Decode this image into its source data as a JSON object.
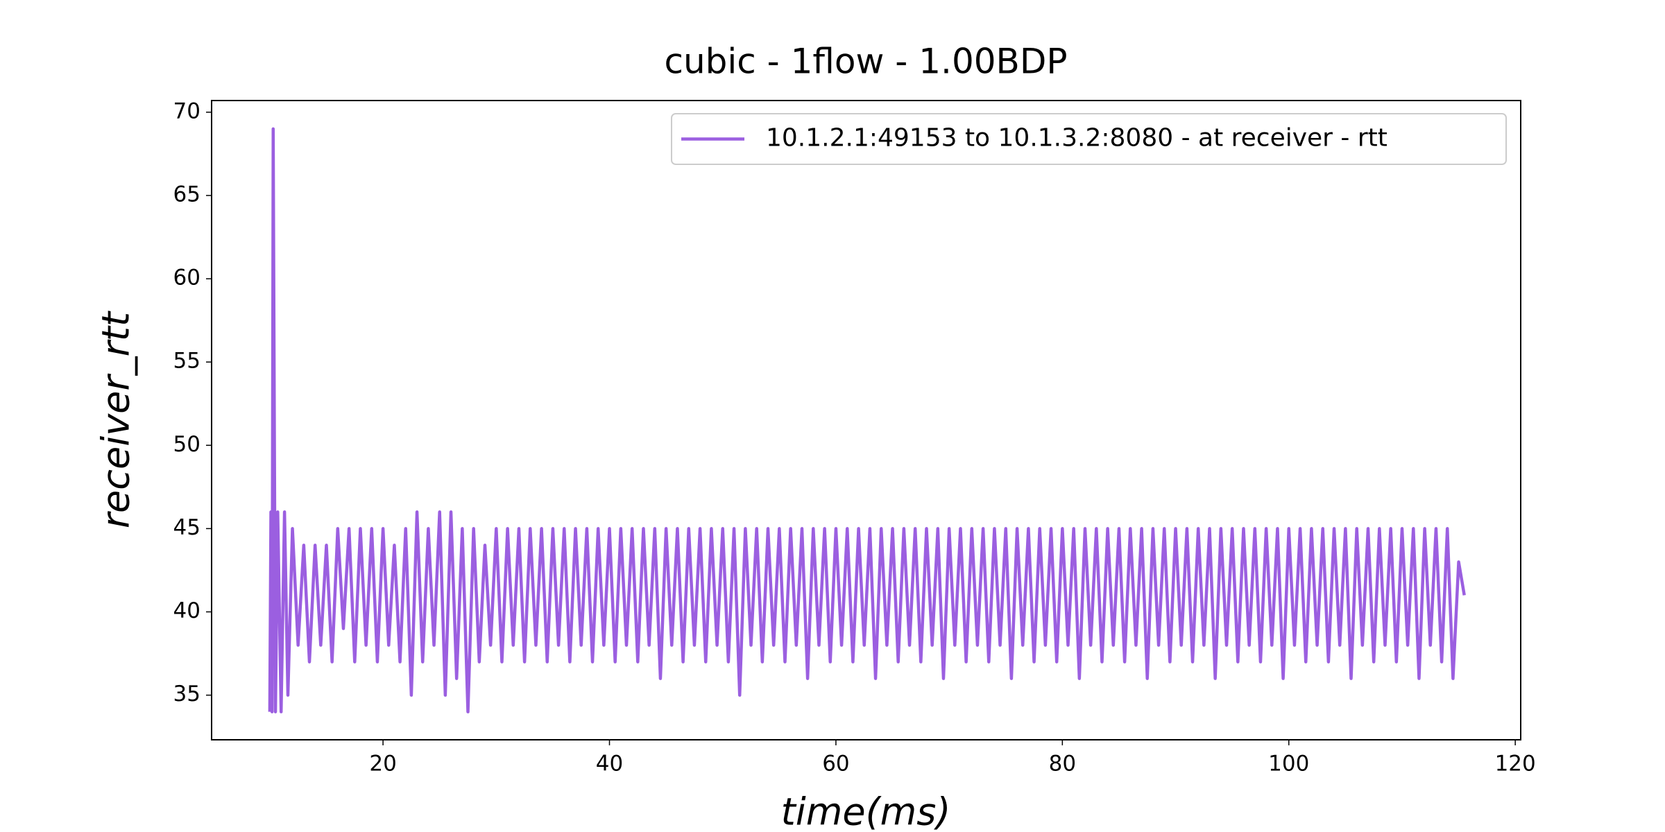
{
  "chart_data": {
    "type": "line",
    "title": "cubic - 1flow - 1.00BDP",
    "xlabel": "time(ms)",
    "ylabel": "receiver_rtt",
    "x": [
      10,
      10.1,
      10.2,
      10.3,
      10.5,
      10.7,
      11,
      11.3,
      11.6,
      12,
      12.5,
      13,
      13.5,
      14,
      14.5,
      15,
      15.5,
      16,
      16.5,
      17,
      17.5,
      18,
      18.5,
      19,
      19.5,
      20,
      20.5,
      21,
      21.5,
      22,
      22.5,
      23,
      23.5,
      24,
      24.5,
      25,
      25.5,
      26,
      26.5,
      27,
      27.5,
      28,
      28.5,
      29,
      29.5,
      30,
      30.5,
      31,
      31.5,
      32,
      32.5,
      33,
      33.5,
      34,
      34.5,
      35,
      35.5,
      36,
      36.5,
      37,
      37.5,
      38,
      38.5,
      39,
      39.5,
      40,
      40.5,
      41,
      41.5,
      42,
      42.5,
      43,
      43.5,
      44,
      44.5,
      45,
      45.5,
      46,
      46.5,
      47,
      47.5,
      48,
      48.5,
      49,
      49.5,
      50,
      50.5,
      51,
      51.5,
      52,
      52.5,
      53,
      53.5,
      54,
      54.5,
      55,
      55.5,
      56,
      56.5,
      57,
      57.5,
      58,
      58.5,
      59,
      59.5,
      60,
      60.5,
      61,
      61.5,
      62,
      62.5,
      63,
      63.5,
      64,
      64.5,
      65,
      65.5,
      66,
      66.5,
      67,
      67.5,
      68,
      68.5,
      69,
      69.5,
      70,
      70.5,
      71,
      71.5,
      72,
      72.5,
      73,
      73.5,
      74,
      74.5,
      75,
      75.5,
      76,
      76.5,
      77,
      77.5,
      78,
      78.5,
      79,
      79.5,
      80,
      80.5,
      81,
      81.5,
      82,
      82.5,
      83,
      83.5,
      84,
      84.5,
      85,
      85.5,
      86,
      86.5,
      87,
      87.5,
      88,
      88.5,
      89,
      89.5,
      90,
      90.5,
      91,
      91.5,
      92,
      92.5,
      93,
      93.5,
      94,
      94.5,
      95,
      95.5,
      96,
      96.5,
      97,
      97.5,
      98,
      98.5,
      99,
      99.5,
      100,
      100.5,
      101,
      101.5,
      102,
      102.5,
      103,
      103.5,
      104,
      104.5,
      105,
      105.5,
      106,
      106.5,
      107,
      107.5,
      108,
      108.5,
      109,
      109.5,
      110,
      110.5,
      111,
      111.5,
      112,
      112.5,
      113,
      113.5,
      114,
      114.5,
      115,
      115.5
    ],
    "series": [
      {
        "name": "10.1.2.1:49153 to 10.1.3.2:8080 - at receiver - rtt",
        "color": "#9b5fe0",
        "values": [
          34,
          46,
          34,
          69,
          34,
          46,
          34,
          46,
          35,
          45,
          38,
          44,
          37,
          44,
          38,
          44,
          37,
          45,
          39,
          45,
          37,
          45,
          38,
          45,
          37,
          45,
          38,
          44,
          37,
          45,
          35,
          46,
          37,
          45,
          38,
          46,
          35,
          46,
          36,
          45,
          34,
          45,
          37,
          44,
          38,
          45,
          37,
          45,
          38,
          45,
          37,
          45,
          38,
          45,
          37,
          45,
          38,
          45,
          37,
          45,
          38,
          45,
          37,
          45,
          38,
          45,
          37,
          45,
          38,
          45,
          37,
          45,
          38,
          45,
          36,
          45,
          38,
          45,
          37,
          45,
          38,
          45,
          37,
          45,
          38,
          45,
          37,
          45,
          35,
          45,
          38,
          45,
          37,
          45,
          38,
          45,
          37,
          45,
          38,
          45,
          36,
          45,
          38,
          45,
          37,
          45,
          38,
          45,
          37,
          45,
          38,
          45,
          36,
          45,
          38,
          45,
          37,
          45,
          38,
          45,
          37,
          45,
          38,
          45,
          36,
          45,
          38,
          45,
          37,
          45,
          38,
          45,
          37,
          45,
          38,
          45,
          36,
          45,
          38,
          45,
          37,
          45,
          38,
          45,
          37,
          45,
          38,
          45,
          36,
          45,
          38,
          45,
          37,
          45,
          38,
          45,
          37,
          45,
          38,
          45,
          36,
          45,
          38,
          45,
          37,
          45,
          38,
          45,
          37,
          45,
          38,
          45,
          36,
          45,
          38,
          45,
          37,
          45,
          38,
          45,
          37,
          45,
          38,
          45,
          36,
          45,
          38,
          45,
          37,
          45,
          38,
          45,
          37,
          45,
          38,
          45,
          36,
          45,
          38,
          45,
          37,
          45,
          38,
          45,
          37,
          45,
          38,
          45,
          36,
          45,
          38,
          45,
          37,
          45,
          36,
          43,
          41
        ]
      }
    ],
    "xlim": [
      4.86,
      120.48
    ],
    "ylim": [
      32.32,
      70.7
    ],
    "xticks": [
      20,
      40,
      60,
      80,
      100,
      120
    ],
    "yticks": [
      35,
      40,
      45,
      50,
      55,
      60,
      65,
      70
    ],
    "legend": "upper right"
  }
}
